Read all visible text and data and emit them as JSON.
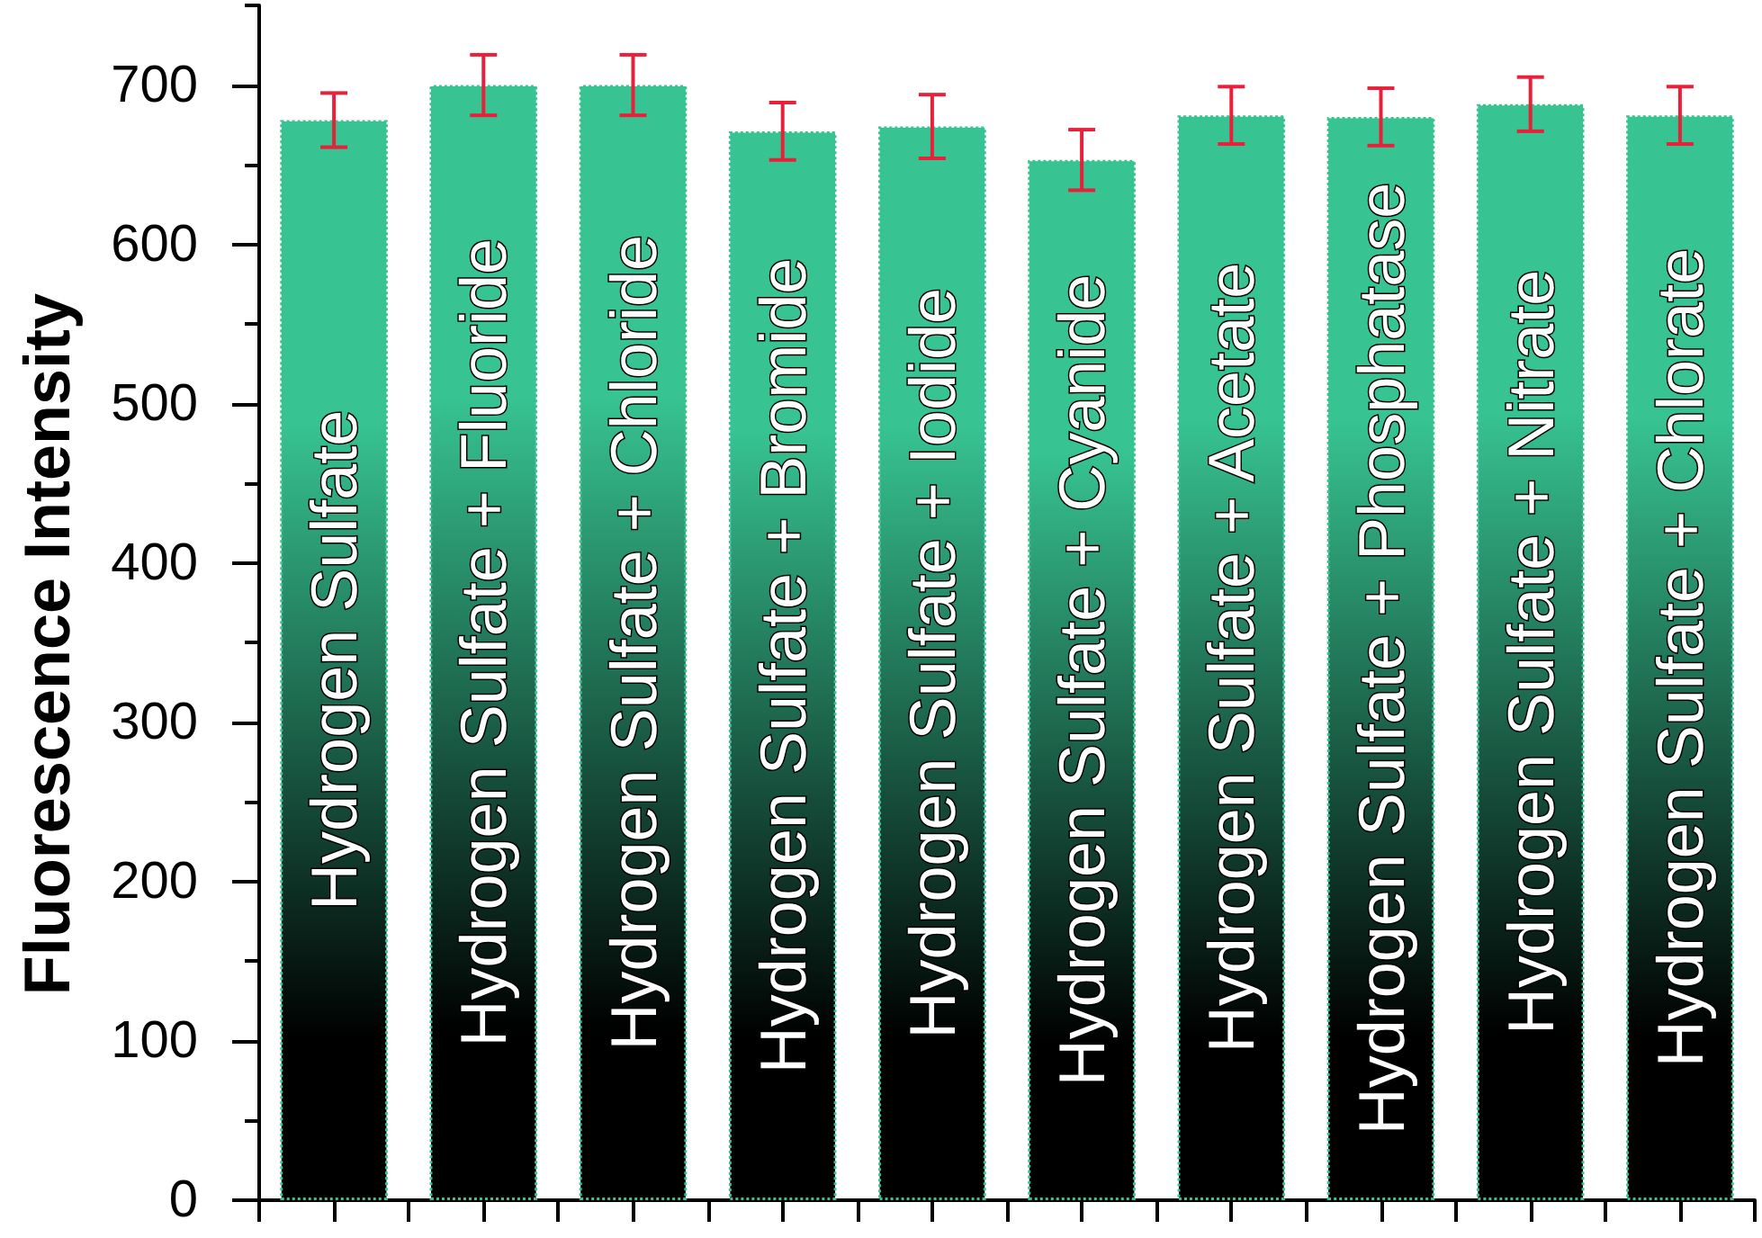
{
  "chart_data": {
    "type": "bar",
    "ylabel": "Fluorescence Intensity",
    "categories": [
      "Hydrogen Sulfate",
      "Hydrogen Sulfate + Fluoride",
      "Hydrogen Sulfate + Chloride",
      "Hydrogen Sulfate + Bromide",
      "Hydrogen Sulfate + Iodide",
      "Hydrogen Sulfate + Cyanide",
      "Hydrogen Sulfate + Acetate",
      "Hydrogen Sulfate + Phosphatase",
      "Hydrogen Sulfate + Nitrate",
      "Hydrogen Sulfate + Chlorate"
    ],
    "values": [
      678,
      700,
      700,
      671,
      674,
      653,
      681,
      680,
      688,
      681
    ],
    "errors": [
      17,
      19,
      19,
      18,
      20,
      19,
      18,
      18,
      17,
      18
    ],
    "color": "#37c392",
    "ylim": [
      0,
      750
    ],
    "yticks": [
      0,
      {
        "value": 50,
        "label": null
      },
      100,
      {
        "value": 150,
        "label": null
      },
      200,
      {
        "value": 250,
        "label": null
      },
      300,
      {
        "value": 350,
        "label": null
      },
      400,
      {
        "value": 450,
        "label": null
      },
      500,
      {
        "value": 550,
        "label": null
      },
      600,
      {
        "value": 650,
        "label": null
      },
      700,
      {
        "value": 750,
        "label": null
      }
    ],
    "grid": false
  }
}
